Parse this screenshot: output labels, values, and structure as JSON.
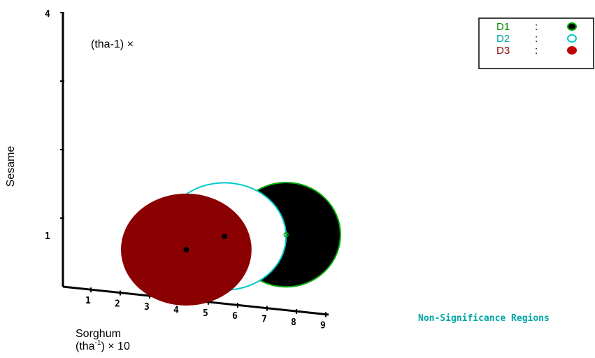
{
  "chart_data": {
    "type": "scatter",
    "subtype": "confidence-regions",
    "title": "Non-Significance Regions",
    "xlabel": "Sorghum",
    "xlabel_unit": [
      "(tha",
      "-1",
      ") × 10"
    ],
    "ylabel": "Sesame",
    "ylabel_unit": "(tha-1) ×",
    "x_ticks": [
      "1",
      "2",
      "3",
      "4",
      "5",
      "6",
      "7",
      "8",
      "9"
    ],
    "y_ticks": [
      "1",
      "4"
    ],
    "xlim": [
      0,
      9
    ],
    "ylim": [
      0,
      4
    ],
    "grid": false,
    "legend_position": "top-right",
    "series": [
      {
        "name": "D1",
        "separator": ":",
        "color": "#0a8a0a",
        "fill": "#000000",
        "outline": "#00aa00",
        "marker": "filled",
        "center": {
          "x": 7.6,
          "y": 1.1
        },
        "rx": 1.85,
        "ry": 0.68
      },
      {
        "name": "D2",
        "separator": ":",
        "color": "#00a6a6",
        "fill": "#ffffff",
        "outline": "#00c8c8",
        "marker": "open",
        "center": {
          "x": 5.5,
          "y": 0.98
        },
        "rx": 2.1,
        "ry": 0.7
      },
      {
        "name": "D3",
        "separator": ":",
        "color": "#8b1010",
        "fill": "#8b0000",
        "outline": "#8b0000",
        "marker": "filled",
        "center": {
          "x": 4.2,
          "y": 0.73
        },
        "rx": 2.2,
        "ry": 0.72
      }
    ]
  }
}
